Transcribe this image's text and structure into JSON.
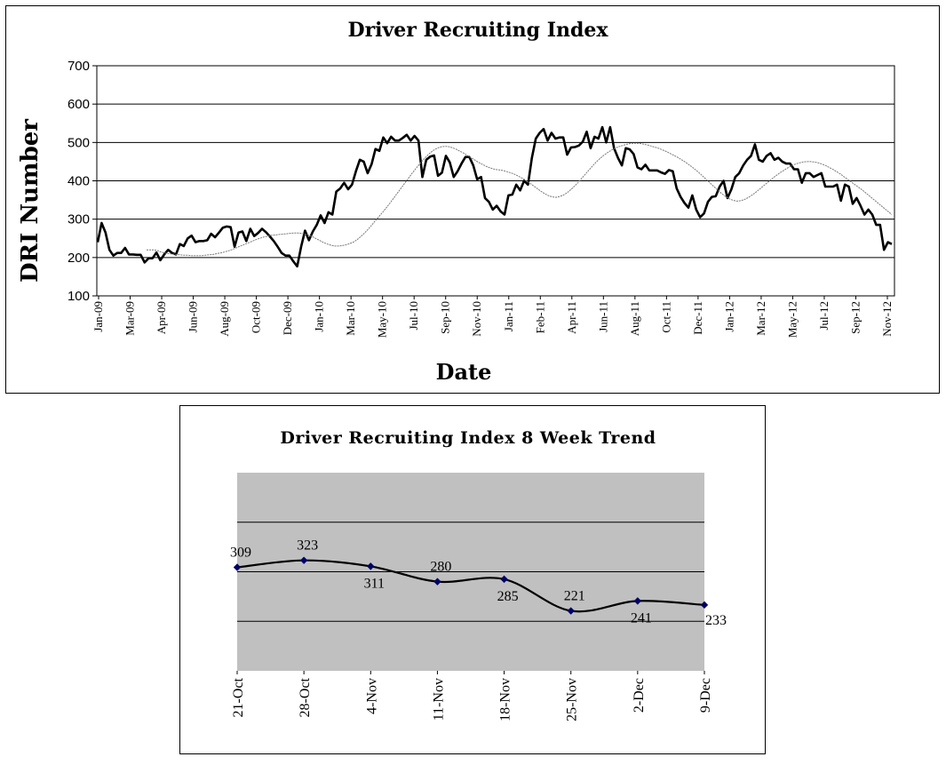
{
  "chart_data": [
    {
      "type": "line",
      "title": "Driver Recruiting Index",
      "xlabel": "Date",
      "ylabel": "DRI Number",
      "ylim": [
        100,
        700
      ],
      "yticks": [
        100,
        200,
        300,
        400,
        500,
        600,
        700
      ],
      "xticks": [
        "Jan-09",
        "Mar-09",
        "Apr-09",
        "Jun-09",
        "Aug-09",
        "Oct-09",
        "Dec-09",
        "Jan-10",
        "Mar-10",
        "May-10",
        "Jul-10",
        "Sep-10",
        "Nov-10",
        "Jan-11",
        "Feb-11",
        "Apr-11",
        "Jun-11",
        "Aug-11",
        "Oct-11",
        "Dec-11",
        "Jan-12",
        "Mar-12",
        "May-12",
        "Jul-12",
        "Sep-12",
        "Nov-12"
      ],
      "grid": true,
      "legend": "none",
      "series": [
        {
          "style": "weekly, thick black line",
          "color": "#000000",
          "values": [
            240,
            290,
            265,
            220,
            205,
            212,
            212,
            225,
            208,
            208,
            207,
            207,
            187,
            198,
            198,
            213,
            193,
            208,
            220,
            212,
            208,
            235,
            230,
            250,
            257,
            240,
            243,
            243,
            245,
            262,
            253,
            265,
            278,
            281,
            279,
            228,
            265,
            268,
            243,
            275,
            256,
            264,
            275,
            266,
            255,
            243,
            228,
            212,
            205,
            205,
            190,
            177,
            228,
            270,
            245,
            268,
            285,
            310,
            290,
            318,
            312,
            372,
            380,
            395,
            378,
            390,
            425,
            455,
            450,
            420,
            443,
            483,
            478,
            513,
            498,
            515,
            505,
            505,
            512,
            520,
            505,
            517,
            505,
            410,
            455,
            463,
            466,
            413,
            421,
            465,
            448,
            410,
            425,
            445,
            462,
            462,
            440,
            404,
            410,
            355,
            345,
            325,
            335,
            320,
            312,
            362,
            364,
            390,
            375,
            400,
            390,
            460,
            510,
            525,
            535,
            505,
            525,
            510,
            513,
            513,
            468,
            487,
            488,
            492,
            502,
            528,
            485,
            515,
            510,
            540,
            500,
            540,
            485,
            460,
            440,
            485,
            482,
            470,
            435,
            430,
            442,
            427,
            427,
            427,
            422,
            418,
            428,
            425,
            380,
            358,
            342,
            330,
            362,
            325,
            305,
            315,
            345,
            358,
            360,
            385,
            400,
            355,
            378,
            410,
            420,
            440,
            455,
            465,
            495,
            455,
            450,
            465,
            472,
            455,
            460,
            450,
            445,
            445,
            430,
            430,
            395,
            420,
            420,
            410,
            415,
            420,
            385,
            385,
            385,
            390,
            348,
            390,
            385,
            340,
            355,
            335,
            312,
            325,
            312,
            285,
            285,
            220,
            240,
            235
          ]
        },
        {
          "style": "moving average, thin dotted line",
          "color": "#777777",
          "values": [
            220,
            220,
            220,
            218,
            214,
            212,
            210,
            209,
            208,
            207,
            206,
            206,
            205,
            205,
            205,
            205,
            206,
            207,
            208,
            210,
            212,
            214,
            217,
            220,
            224,
            228,
            232,
            236,
            240,
            244,
            248,
            251,
            254,
            256,
            258,
            259,
            260,
            261,
            262,
            263,
            264,
            264,
            263,
            261,
            258,
            254,
            249,
            244,
            239,
            235,
            232,
            230,
            230,
            231,
            233,
            236,
            240,
            246,
            254,
            263,
            273,
            284,
            296,
            307,
            318,
            330,
            342,
            355,
            368,
            381,
            394,
            407,
            420,
            432,
            444,
            455,
            465,
            474,
            481,
            486,
            489,
            490,
            489,
            486,
            482,
            477,
            472,
            466,
            460,
            454,
            448,
            443,
            438,
            434,
            431,
            429,
            428,
            426,
            423,
            420,
            416,
            411,
            406,
            400,
            393,
            386,
            379,
            372,
            366,
            361,
            358,
            357,
            359,
            363,
            369,
            377,
            386,
            396,
            407,
            418,
            429,
            440,
            450,
            459,
            467,
            474,
            480,
            485,
            489,
            492,
            495,
            497,
            498,
            498,
            497,
            495,
            493,
            490,
            487,
            484,
            480,
            476,
            471,
            466,
            461,
            455,
            449,
            442,
            435,
            427,
            419,
            410,
            401,
            392,
            383,
            374,
            366,
            359,
            353,
            349,
            347,
            348,
            351,
            356,
            362,
            369,
            377,
            385,
            393,
            401,
            409,
            416,
            423,
            429,
            435,
            440,
            444,
            447,
            449,
            450,
            450,
            449,
            447,
            444,
            440,
            435,
            430,
            424,
            418,
            411,
            404,
            397,
            390,
            383,
            376,
            368,
            360,
            352,
            344,
            336,
            328,
            320,
            312
          ]
        }
      ]
    },
    {
      "type": "line",
      "title": "Driver Recruiting Index 8 Week Trend",
      "categories": [
        "21-Oct",
        "28-Oct",
        "4-Nov",
        "11-Nov",
        "18-Nov",
        "25-Nov",
        "2-Dec",
        "9-Dec"
      ],
      "values": [
        309,
        323,
        311,
        280,
        285,
        221,
        241,
        233
      ],
      "data_labels": [
        "309",
        "323",
        "311",
        "280",
        "285",
        "221",
        "241",
        "233"
      ],
      "ylim": [
        100,
        500
      ],
      "grid": true,
      "legend": "none"
    }
  ]
}
